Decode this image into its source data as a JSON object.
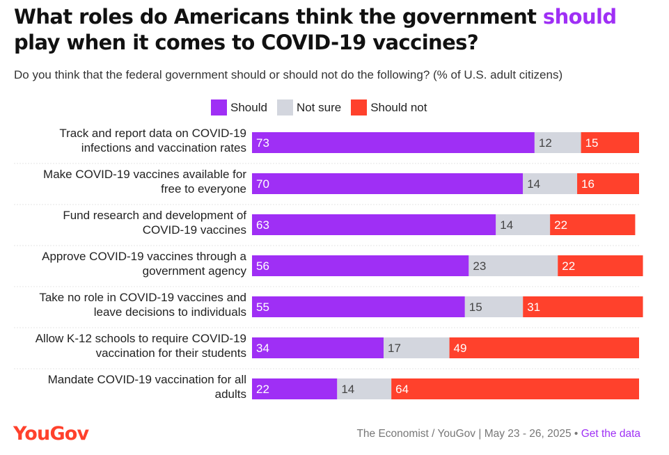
{
  "title": {
    "part1": "What roles do Americans think the government ",
    "highlight": "should",
    "part2": " play when it comes to COVID-19 vaccines?"
  },
  "subtitle": "Do you think that the federal government should or should not do the following? (% of U.S. adult citizens)",
  "colors": {
    "should": "#9f2ff5",
    "not_sure": "#d3d6de",
    "should_not": "#ff412c"
  },
  "chart_data": {
    "type": "bar",
    "orientation": "horizontal",
    "stacked": true,
    "legend_position": "top",
    "categories": [
      [
        "Track and report data on COVID-19",
        "infections and vaccination rates"
      ],
      [
        "Make COVID-19 vaccines available for",
        "free to everyone"
      ],
      [
        "Fund research and development of",
        "COVID-19 vaccines"
      ],
      [
        "Approve COVID-19 vaccines through a",
        "government agency"
      ],
      [
        "Take no role in COVID-19 vaccines and",
        "leave decisions to individuals"
      ],
      [
        "Allow K-12 schools to require COVID-19",
        "vaccination for their students"
      ],
      [
        "Mandate COVID-19 vaccination for all",
        "adults"
      ]
    ],
    "series": [
      {
        "name": "Should",
        "values": [
          73,
          70,
          63,
          56,
          55,
          34,
          22
        ]
      },
      {
        "name": "Not sure",
        "values": [
          12,
          14,
          14,
          23,
          15,
          17,
          14
        ]
      },
      {
        "name": "Should not",
        "values": [
          15,
          16,
          22,
          22,
          31,
          49,
          64
        ]
      }
    ],
    "xlim": [
      0,
      100
    ]
  },
  "footer": {
    "logo": "YouGov",
    "source": "The Economist / YouGov | May 23 - 26, 2025 •",
    "link": "Get the data"
  }
}
